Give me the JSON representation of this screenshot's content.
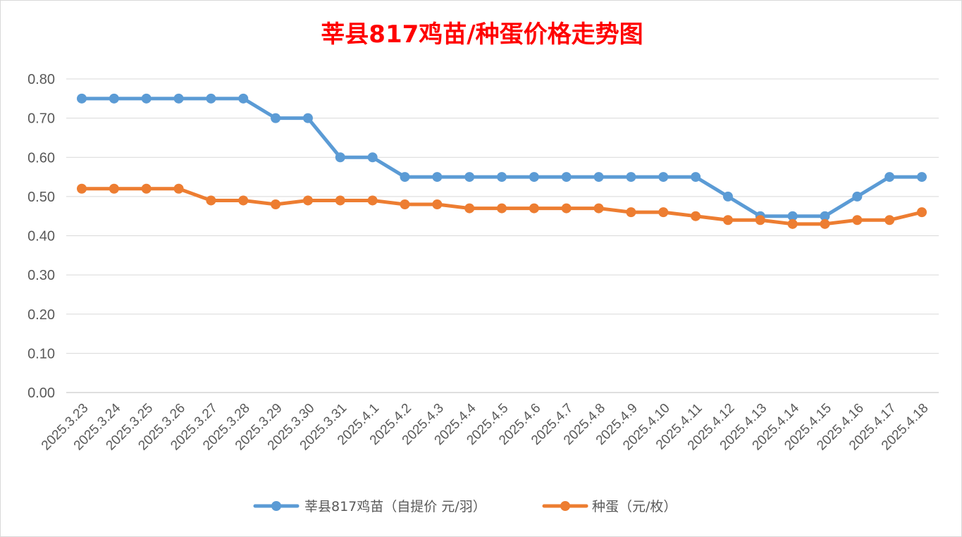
{
  "chart_data": {
    "type": "line",
    "title": "莘县817鸡苗/种蛋价格走势图",
    "categories": [
      "2025.3.23",
      "2025.3.24",
      "2025.3.25",
      "2025.3.26",
      "2025.3.27",
      "2025.3.28",
      "2025.3.29",
      "2025.3.30",
      "2025.3.31",
      "2025.4.1",
      "2025.4.2",
      "2025.4.3",
      "2025.4.4",
      "2025.4.5",
      "2025.4.6",
      "2025.4.7",
      "2025.4.8",
      "2025.4.9",
      "2025.4.10",
      "2025.4.11",
      "2025.4.12",
      "2025.4.13",
      "2025.4.14",
      "2025.4.15",
      "2025.4.16",
      "2025.4.17",
      "2025.4.18"
    ],
    "series": [
      {
        "name": "莘县817鸡苗（自提价 元/羽）",
        "color": "#5b9bd5",
        "values": [
          0.75,
          0.75,
          0.75,
          0.75,
          0.75,
          0.75,
          0.7,
          0.7,
          0.6,
          0.6,
          0.55,
          0.55,
          0.55,
          0.55,
          0.55,
          0.55,
          0.55,
          0.55,
          0.55,
          0.55,
          0.5,
          0.45,
          0.45,
          0.45,
          0.5,
          0.55,
          0.55
        ]
      },
      {
        "name": "种蛋（元/枚）",
        "color": "#ed7d31",
        "values": [
          0.52,
          0.52,
          0.52,
          0.52,
          0.49,
          0.49,
          0.48,
          0.49,
          0.49,
          0.49,
          0.48,
          0.48,
          0.47,
          0.47,
          0.47,
          0.47,
          0.47,
          0.46,
          0.46,
          0.45,
          0.44,
          0.44,
          0.43,
          0.43,
          0.44,
          0.44,
          0.46
        ]
      }
    ],
    "yticks": [
      "0.00",
      "0.10",
      "0.20",
      "0.30",
      "0.40",
      "0.50",
      "0.60",
      "0.70",
      "0.80"
    ],
    "ylim": [
      0,
      0.8
    ],
    "xlabel": "",
    "ylabel": "",
    "grid": true,
    "legend_position": "bottom"
  }
}
